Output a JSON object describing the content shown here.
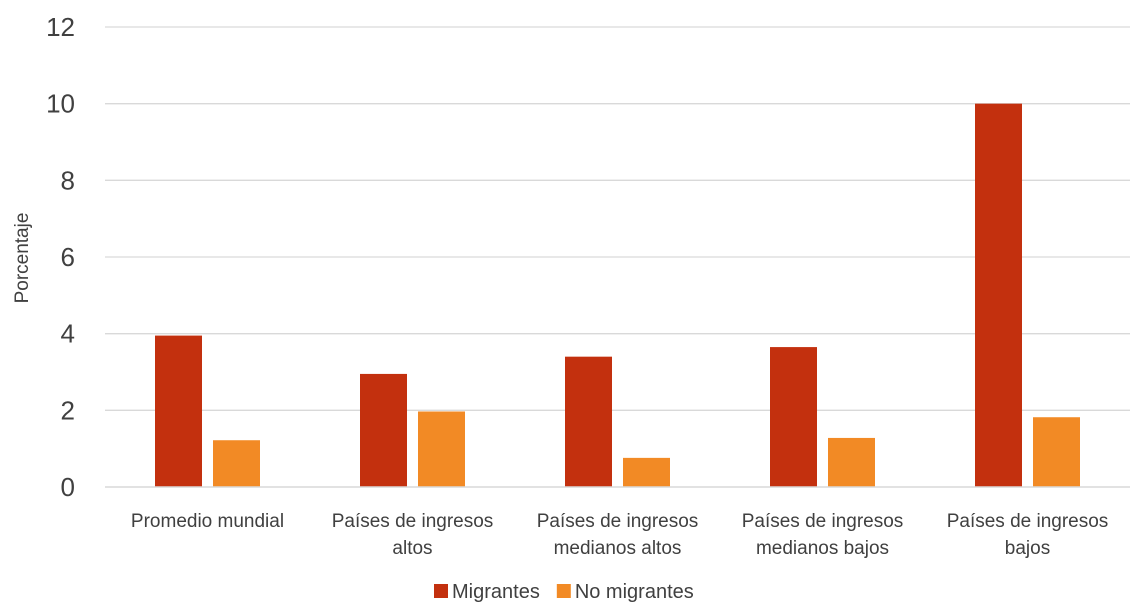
{
  "chart_data": {
    "type": "bar",
    "title": "",
    "xlabel": "",
    "ylabel": "Porcentaje",
    "ylim": [
      0,
      12
    ],
    "yticks": [
      0,
      2,
      4,
      6,
      8,
      10,
      12
    ],
    "grid": true,
    "legend_position": "bottom",
    "categories": [
      [
        "Promedio mundial"
      ],
      [
        "Países de ingresos",
        "altos"
      ],
      [
        "Países de ingresos",
        "medianos altos"
      ],
      [
        "Países de ingresos",
        "medianos bajos"
      ],
      [
        "Países de ingresos",
        "bajos"
      ]
    ],
    "series": [
      {
        "name": "Migrantes",
        "color": "#c3300e",
        "values": [
          3.95,
          2.95,
          3.4,
          3.65,
          10.0
        ]
      },
      {
        "name": "No migrantes",
        "color": "#f28a25",
        "values": [
          1.22,
          1.97,
          0.76,
          1.28,
          1.82
        ]
      }
    ]
  }
}
